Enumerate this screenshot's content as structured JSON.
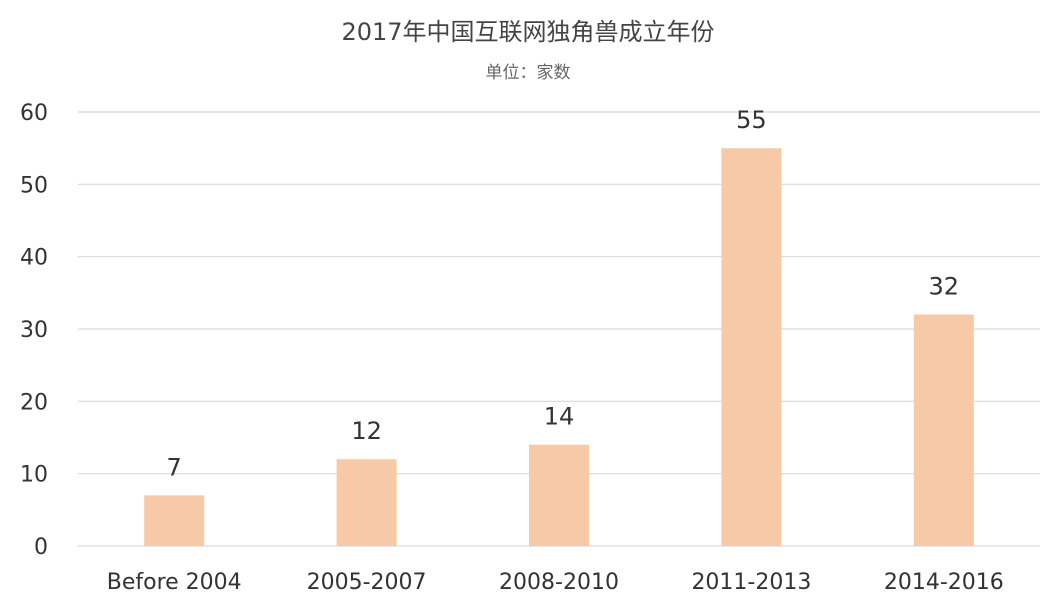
{
  "chart_data": {
    "type": "bar",
    "title": "2017年中国互联网独角兽成立年份",
    "subtitle": "单位：家数",
    "categories": [
      "Before 2004",
      "2005-2007",
      "2008-2010",
      "2011-2013",
      "2014-2016"
    ],
    "values": [
      7,
      12,
      14,
      55,
      32
    ],
    "ylim": [
      0,
      60
    ],
    "yticks": [
      0,
      10,
      20,
      30,
      40,
      50,
      60
    ],
    "xlabel": "",
    "ylabel": "",
    "grid": true,
    "legend": "none",
    "bar_color": "#f7c9a7",
    "grid_color": "#d9d9d9",
    "data_labels": true
  }
}
